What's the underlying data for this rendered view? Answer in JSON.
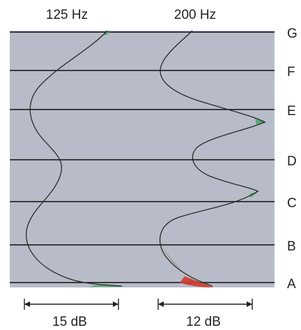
{
  "columns": [
    {
      "title": "125 Hz",
      "scale": "15 dB"
    },
    {
      "title": "200 Hz",
      "scale": "12 dB"
    }
  ],
  "rows": [
    "G",
    "F",
    "E",
    "D",
    "C",
    "B",
    "A"
  ],
  "colors": {
    "panel": "#b7bcc8",
    "lines": "#111111",
    "curve": "#2a2a2a",
    "green_fill": "#4aa86a",
    "red_fill": "#d03a2a"
  }
}
